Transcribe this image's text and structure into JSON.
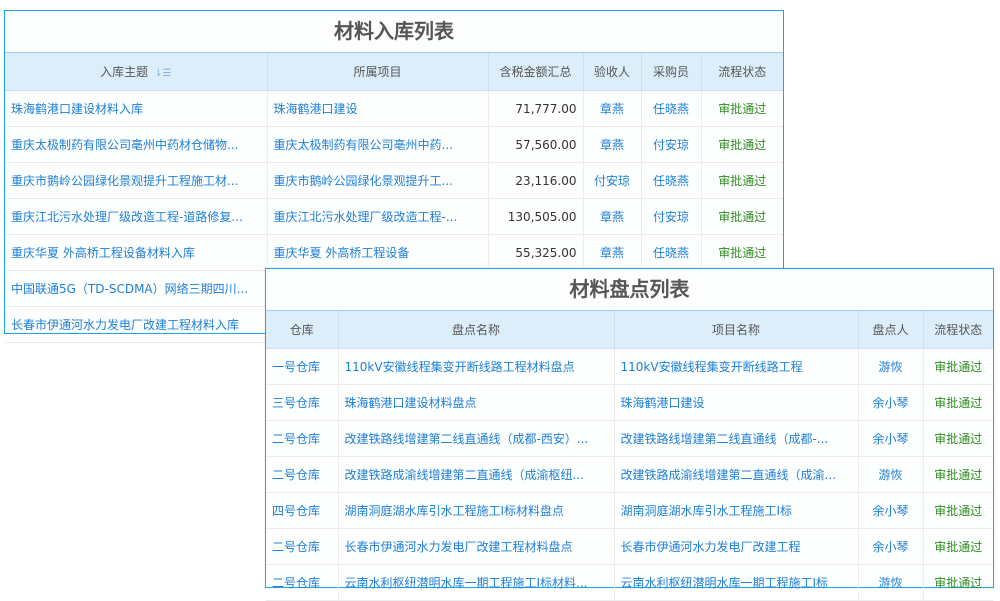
{
  "inbound": {
    "title": "材料入库列表",
    "columns": [
      "入库主题",
      "所属项目",
      "含税金额汇总",
      "验收人",
      "采购员",
      "流程状态"
    ],
    "sort_icon": "sort-icon",
    "rows": [
      [
        "珠海鹤港口建设材料入库",
        "珠海鹤港口建设",
        "71,777.00",
        "章燕",
        "任晓燕",
        "审批通过"
      ],
      [
        "重庆太极制药有限公司亳州中药材仓储物...",
        "重庆太极制药有限公司亳州中药...",
        "57,560.00",
        "章燕",
        "付安琼",
        "审批通过"
      ],
      [
        "重庆市鹅岭公园绿化景观提升工程施工材...",
        "重庆市鹅岭公园绿化景观提升工...",
        "23,116.00",
        "付安琼",
        "任晓燕",
        "审批通过"
      ],
      [
        "重庆江北污水处理厂级改造工程-道路修复...",
        "重庆江北污水处理厂级改造工程-...",
        "130,505.00",
        "章燕",
        "付安琼",
        "审批通过"
      ],
      [
        "重庆华夏 外高桥工程设备材料入库",
        "重庆华夏 外高桥工程设备",
        "55,325.00",
        "章燕",
        "任晓燕",
        "审批通过"
      ],
      [
        "中国联通5G（TD-SCDMA）网络三期四川...",
        "",
        "",
        "",
        "",
        ""
      ],
      [
        "长春市伊通河水力发电厂改建工程材料入库",
        "",
        "",
        "",
        "",
        ""
      ]
    ]
  },
  "inventory": {
    "title": "材料盘点列表",
    "columns": [
      "仓库",
      "盘点名称",
      "项目名称",
      "盘点人",
      "流程状态"
    ],
    "rows": [
      [
        "一号仓库",
        "110kV安徽线程集变开断线路工程材料盘点",
        "110kV安徽线程集变开断线路工程",
        "游恢",
        "审批通过"
      ],
      [
        "三号仓库",
        "珠海鹤港口建设材料盘点",
        "珠海鹤港口建设",
        "余小琴",
        "审批通过"
      ],
      [
        "二号仓库",
        "改建铁路线增建第二线直通线（成都-西安）...",
        "改建铁路线增建第二线直通线（成都-...",
        "余小琴",
        "审批通过"
      ],
      [
        "二号仓库",
        "改建铁路成渝线增建第二直通线（成渝枢纽...",
        "改建铁路成渝线增建第二直通线（成渝...",
        "游恢",
        "审批通过"
      ],
      [
        "四号仓库",
        "湖南洞庭湖水库引水工程施工I标材料盘点",
        "湖南洞庭湖水库引水工程施工I标",
        "余小琴",
        "审批通过"
      ],
      [
        "二号仓库",
        "长春市伊通河水力发电厂改建工程材料盘点",
        "长春市伊通河水力发电厂改建工程",
        "余小琴",
        "审批通过"
      ],
      [
        "二号仓库",
        "云南水利枢纽潜明水库一期工程施工I标材料...",
        "云南水利枢纽潜明水库一期工程施工I标",
        "游恢",
        "审批通过"
      ]
    ]
  },
  "colors": {
    "border": "#1ba6ea",
    "header_bg": "#ddeefb",
    "link": "#1e7fd9",
    "status": "#2e8b1f"
  }
}
